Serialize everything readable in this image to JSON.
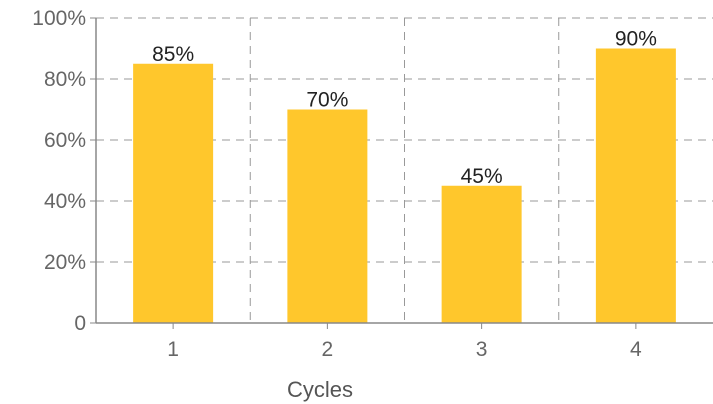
{
  "chart_data": {
    "type": "bar",
    "categories": [
      "1",
      "2",
      "3",
      "4"
    ],
    "values": [
      85,
      70,
      45,
      90
    ],
    "data_labels": [
      "85%",
      "70%",
      "45%",
      "90%"
    ],
    "xlabel": "Cycles",
    "ylabel": "",
    "ylim": [
      0,
      100
    ],
    "yticks": [
      0,
      20,
      40,
      60,
      80,
      100
    ],
    "ytick_labels": [
      "0",
      "20%",
      "40%",
      "60%",
      "80%",
      "100%"
    ],
    "grid": true,
    "legend": "none",
    "colors": {
      "bar": "#FFC72C",
      "grid": "#999999",
      "axis": "#888888"
    }
  }
}
